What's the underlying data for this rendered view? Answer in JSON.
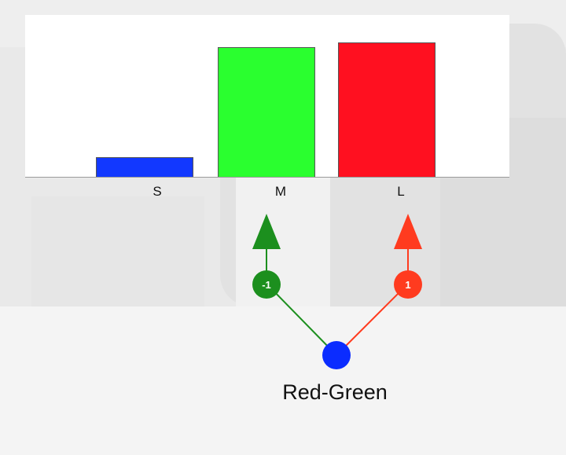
{
  "chart_data": {
    "type": "bar",
    "categories": [
      "S",
      "M",
      "L"
    ],
    "values": [
      0.12,
      0.8,
      0.83
    ],
    "ylim": [
      0,
      1
    ],
    "colors": [
      "#1238ff",
      "#2aff2f",
      "#ff1020"
    ],
    "grid": false
  },
  "diagram": {
    "nodes": [
      {
        "label": "-1",
        "color": "#1c8f1e"
      },
      {
        "label": "1",
        "color": "#ff3b1f"
      }
    ],
    "origin_color": "#0b2cff",
    "caption": "Red-Green"
  }
}
